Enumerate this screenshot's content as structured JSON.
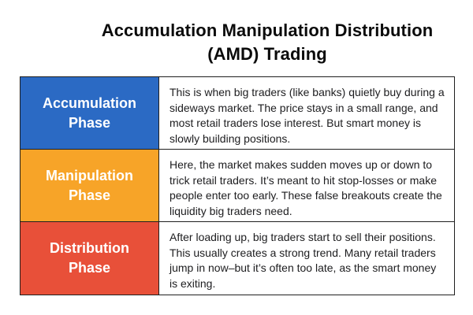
{
  "title": {
    "line1": "Accumulation Manipulation Distribution",
    "line2": "(AMD) Trading"
  },
  "colors": {
    "accumulation": "#2B6AC4",
    "manipulation": "#F7A428",
    "distribution": "#E85039",
    "border": "#1F1F1F",
    "body_text": "#1D1D1F",
    "label_text": "#FFFFFF"
  },
  "phases": [
    {
      "name": "Accumulation Phase",
      "color": "#2B6AC4",
      "description": "This is when big traders (like banks) quietly buy during a sideways market. The price stays in a small range, and most retail traders lose interest. But smart money is slowly building positions."
    },
    {
      "name": "Manipulation Phase",
      "color": "#F7A428",
      "description": "Here, the market makes sudden moves up or down to trick retail traders. It’s meant to hit stop-losses or make people enter too early. These false breakouts create the liquidity big traders need."
    },
    {
      "name": "Distribution Phase",
      "color": "#E85039",
      "description": "After loading up, big traders start to sell their positions. This usually creates a strong trend. Many retail traders jump in now–but it’s often too late, as the smart money is exiting."
    }
  ]
}
